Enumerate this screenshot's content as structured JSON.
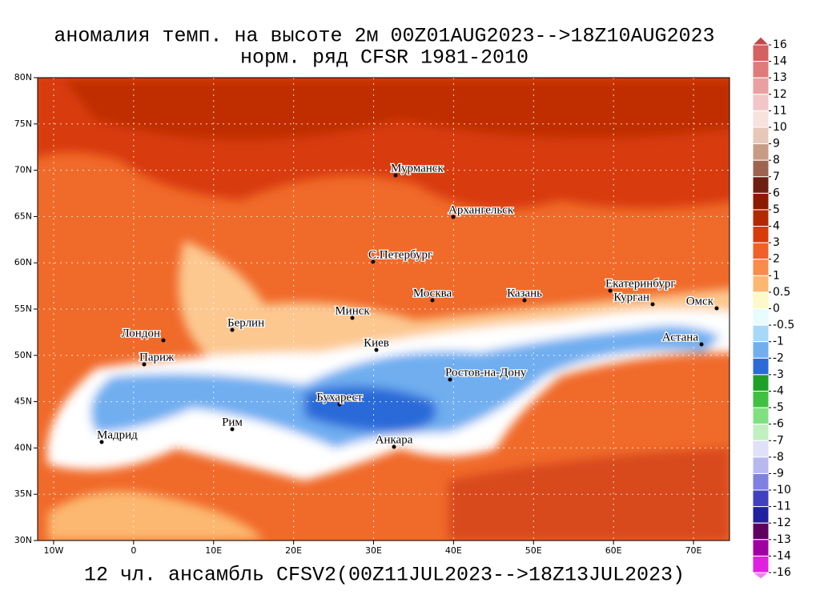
{
  "title": "аномалия темп. на высоте 2м 00Z01AUG2023-->18Z10AUG2023",
  "subtitle": "норм. ряд CFSR 1981-2010",
  "footer": "12 чл. ансамбль CFSV2(00Z11JUL2023-->18Z13JUL2023)",
  "map": {
    "xlim": [
      -12,
      74.5
    ],
    "ylim": [
      30,
      80
    ],
    "xticks": [
      {
        "value": -10,
        "label": "10W"
      },
      0,
      {
        "value": 10,
        "label": "10E"
      },
      {
        "value": 20,
        "label": "20E"
      },
      {
        "value": 30,
        "label": "30E"
      },
      {
        "value": 40,
        "label": "40E"
      },
      {
        "value": 50,
        "label": "50E"
      },
      {
        "value": 60,
        "label": "60E"
      },
      {
        "value": 70,
        "label": "70E"
      }
    ],
    "yticks": [
      {
        "value": 30,
        "label": "30N"
      },
      {
        "value": 35,
        "label": "35N"
      },
      {
        "value": 40,
        "label": "40N"
      },
      {
        "value": 45,
        "label": "45N"
      },
      {
        "value": 50,
        "label": "50N"
      },
      {
        "value": 55,
        "label": "55N"
      },
      {
        "value": 60,
        "label": "60N"
      },
      {
        "value": 65,
        "label": "65N"
      },
      {
        "value": 70,
        "label": "70N"
      },
      {
        "value": 75,
        "label": "75N"
      },
      {
        "value": 80,
        "label": "80N"
      }
    ],
    "grid": true,
    "cities": [
      "Мурманск",
      "Архангельск",
      "С.Петербург",
      "Москва",
      "Казань",
      "Екатеринбург",
      "Курган",
      "Омск",
      "Астана",
      "Минск",
      "Лондон",
      "Берлин",
      "Париж",
      "Киев",
      "Ростов-на-Дону",
      "Бухарест",
      "Рим",
      "Мадрид",
      "Анкара"
    ]
  },
  "colorbar": {
    "levels": [
      16,
      14,
      13,
      12,
      11,
      10,
      9,
      8,
      7,
      6,
      5,
      4,
      3,
      2,
      1,
      0.5,
      0,
      -0.5,
      -1,
      -2,
      -3,
      -4,
      -5,
      -6,
      -7,
      -8,
      -9,
      -10,
      -11,
      -12,
      -13,
      -14,
      -16
    ],
    "colors": [
      "#c04848",
      "#d46060",
      "#e07b7b",
      "#eaa0a0",
      "#f2c6c6",
      "#f7e2dc",
      "#e6c8b8",
      "#c89c84",
      "#9e6450",
      "#6e2010",
      "#8c1a00",
      "#b42800",
      "#d83a0a",
      "#f0602a",
      "#f88c48",
      "#fcb870",
      "#fff8c8",
      "#e8fbff",
      "#a8d8f8",
      "#70aef0",
      "#2c6ad8",
      "#1ea028",
      "#40c040",
      "#80e080",
      "#c0f0c0",
      "#e0e0f8",
      "#b8b8f0",
      "#8080e0",
      "#4040c0",
      "#2020a0",
      "#600060",
      "#a000a0",
      "#e020e0",
      "#f080f0"
    ]
  }
}
